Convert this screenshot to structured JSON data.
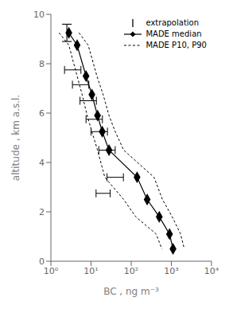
{
  "chart_data": {
    "type": "line",
    "title": "",
    "xlabel": "BC , ng m⁻³",
    "ylabel": "altitude , km a.s.l.",
    "log": "x",
    "grid": false,
    "legend": "upper right",
    "xlim": [
      1,
      10000
    ],
    "xticks": [
      {
        "value": 1,
        "label": "10⁰"
      },
      {
        "value": 10,
        "label": "10¹"
      },
      {
        "value": 100,
        "label": "10²"
      },
      {
        "value": 1000,
        "label": "10³"
      },
      {
        "value": 10000,
        "label": "10⁴"
      }
    ],
    "ylim": [
      0.0,
      10.0
    ],
    "yticks": [
      0,
      2,
      4,
      6,
      8,
      10
    ],
    "series": [
      {
        "name": "extrapolation",
        "type": "errorbar",
        "color": "#000000",
        "x": [
          2.5
        ],
        "values": [
          9.25
        ],
        "y_err": [
          0.35
        ]
      },
      {
        "name": "MADE median",
        "type": "line",
        "color": "#000000",
        "marker": "diamond",
        "line_style": "solid",
        "x": [
          2.8,
          4.5,
          7.5,
          10.5,
          14.5,
          19.0,
          28.0,
          140.0,
          250.0,
          500.0,
          900.0,
          1100.0
        ],
        "values": [
          9.25,
          8.75,
          7.5,
          6.75,
          5.9,
          5.25,
          4.5,
          3.4,
          2.5,
          1.8,
          1.1,
          0.5
        ]
      },
      {
        "name": "MADE P10, P90",
        "type": "line",
        "color": "#000000",
        "line_style": "dashed",
        "x": [
          1.6,
          2.8,
          4.5,
          6.0,
          8.0,
          10.5,
          14.5,
          22.0,
          65.0,
          130.0,
          420.0,
          580.0
        ],
        "values": [
          9.25,
          8.75,
          7.5,
          6.75,
          5.9,
          5.25,
          4.5,
          3.4,
          2.5,
          1.8,
          1.1,
          0.5
        ]
      },
      {
        "name": "MADE P10, P90",
        "type": "line",
        "color": "#000000",
        "line_style": "dashed",
        "x": [
          5.0,
          8.5,
          14.0,
          20.0,
          28.0,
          40.0,
          65.0,
          370.0,
          600.0,
          1050.0,
          1700.0,
          2100.0
        ],
        "values": [
          9.25,
          8.75,
          7.5,
          6.75,
          5.9,
          5.25,
          4.5,
          3.4,
          2.5,
          1.8,
          1.1,
          0.5
        ]
      }
    ],
    "error_bars": {
      "color": "#000000",
      "x": [
        3.5,
        5.5,
        8.5,
        12.0,
        16.0,
        25.0,
        40.0,
        20.0
      ],
      "y": [
        7.75,
        7.15,
        6.5,
        5.75,
        5.25,
        4.5,
        3.4,
        2.75
      ],
      "x_err": [
        [
          1.3125,
          2.1
        ],
        [
          2.0625,
          3.3
        ],
        [
          3.1875,
          5.1
        ],
        [
          4.5,
          7.2
        ],
        [
          6,
          9.6
        ],
        [
          9.375,
          15
        ],
        [
          15,
          24
        ],
        [
          6.666666666666666,
          10
        ]
      ]
    }
  }
}
